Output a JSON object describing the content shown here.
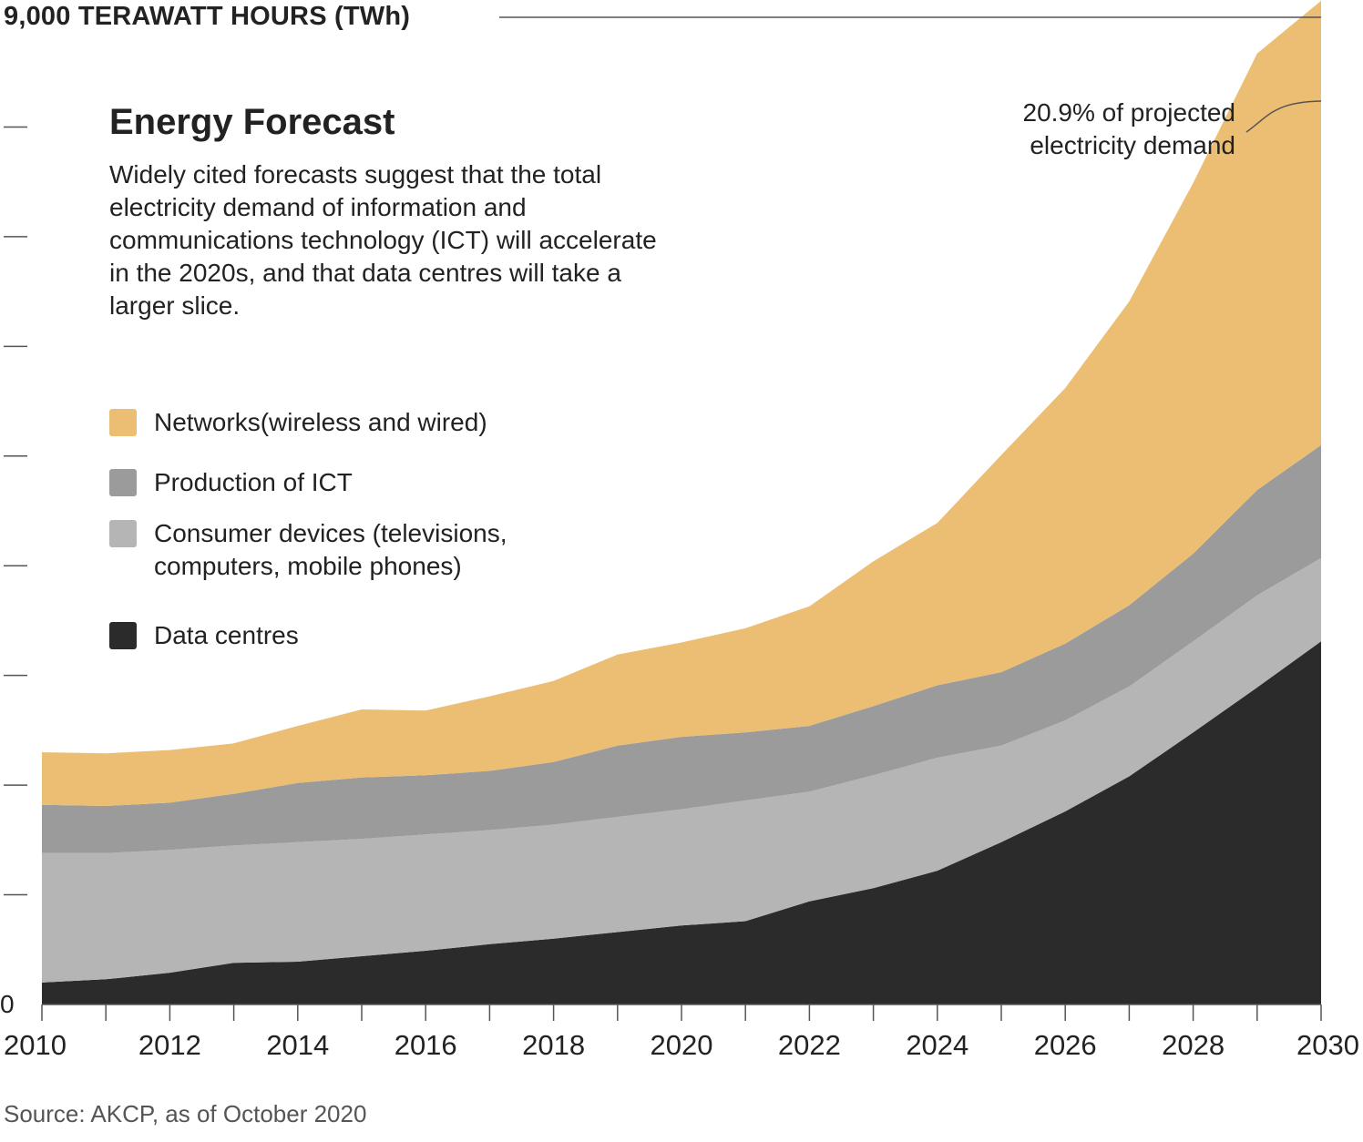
{
  "header": {
    "top_label": "9,000 TERAWATT HOURS (TWh)",
    "title": "Energy Forecast",
    "subtitle": "Widely cited forecasts suggest that the total electricity demand of information and communications technology (ICT) will accelerate in the 2020s, and that data centres will take a larger slice.",
    "annotation_line1": "20.9% of projected",
    "annotation_line2": "electricity demand",
    "source": "Source: AKCP, as of October 2020"
  },
  "colors": {
    "networks": "#ebbe74",
    "production": "#9b9b9b",
    "consumer": "#b5b5b5",
    "data_centres": "#2b2b2b",
    "axis": "#555555"
  },
  "legend": [
    {
      "key": "networks",
      "label": "Networks(wireless and wired)"
    },
    {
      "key": "production",
      "label": "Production of ICT"
    },
    {
      "key": "consumer",
      "label": "Consumer devices (televisions, computers, mobile phones)"
    },
    {
      "key": "data_centres",
      "label": "Data centres"
    }
  ],
  "chart_data": {
    "type": "area",
    "stacked": true,
    "title": "Energy Forecast",
    "ylabel": "9,000 TERAWATT HOURS (TWh)",
    "xlim": [
      2010,
      2030
    ],
    "ylim": [
      0,
      9000
    ],
    "y_tick_label": "0",
    "x_tick_labels": [
      "2010",
      "2012",
      "2014",
      "2016",
      "2018",
      "2020",
      "2022",
      "2024",
      "2026",
      "2028",
      "2030"
    ],
    "x": [
      2010,
      2011,
      2012,
      2013,
      2014,
      2015,
      2016,
      2017,
      2018,
      2019,
      2020,
      2021,
      2022,
      2023,
      2024,
      2025,
      2026,
      2027,
      2028,
      2029,
      2030
    ],
    "series": [
      {
        "name": "Data centres",
        "key": "data_centres",
        "values": [
          200,
          230,
          290,
          380,
          390,
          440,
          490,
          550,
          600,
          660,
          720,
          760,
          940,
          1060,
          1220,
          1480,
          1760,
          2080,
          2480,
          2890,
          3310
        ]
      },
      {
        "name": "Consumer devices (televisions, computers, mobile phones)",
        "key": "consumer",
        "values": [
          1180,
          1150,
          1120,
          1070,
          1090,
          1070,
          1060,
          1040,
          1040,
          1050,
          1060,
          1100,
          1000,
          1030,
          1030,
          880,
          830,
          820,
          830,
          840,
          760
        ]
      },
      {
        "name": "Production of ICT",
        "key": "production",
        "values": [
          440,
          430,
          430,
          470,
          540,
          560,
          540,
          540,
          570,
          650,
          660,
          620,
          600,
          630,
          660,
          670,
          700,
          740,
          800,
          960,
          1030
        ]
      },
      {
        "name": "Networks(wireless and wired)",
        "key": "networks",
        "values": [
          480,
          480,
          480,
          460,
          520,
          620,
          590,
          680,
          740,
          830,
          860,
          950,
          1090,
          1320,
          1480,
          1980,
          2330,
          2770,
          3380,
          3980,
          4050
        ]
      }
    ],
    "annotation": "20.9% of projected electricity demand",
    "grid": false
  }
}
